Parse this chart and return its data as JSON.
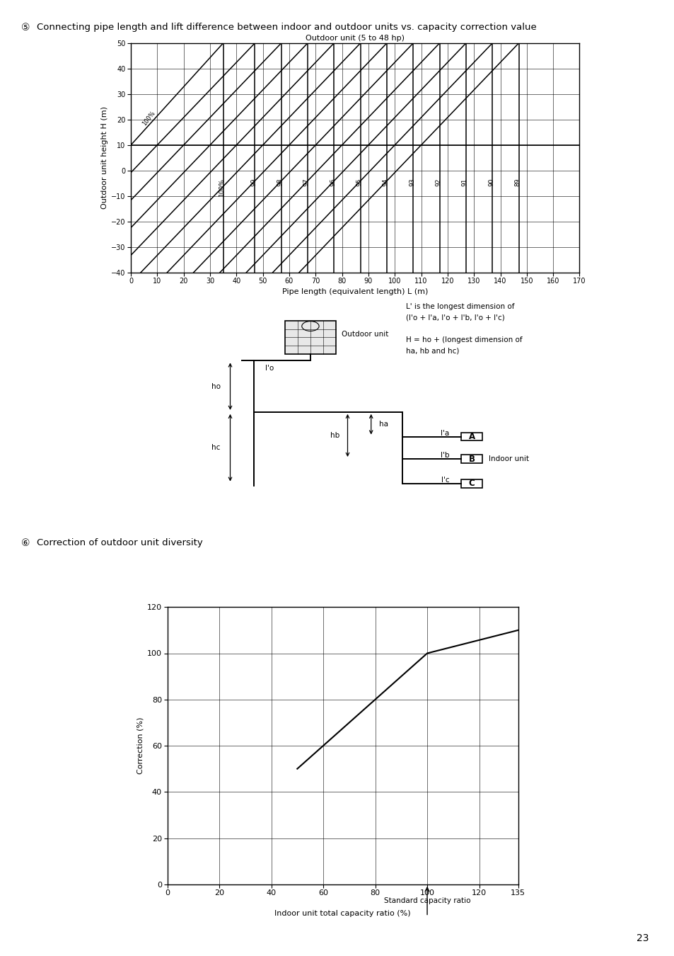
{
  "page_title": "Connecting pipe length and lift difference between indoor and outdoor units vs. capacity correction value",
  "page_number": "23",
  "circle_num1": "⑤",
  "circle_num2": "⑥",
  "chart1": {
    "title": "Outdoor unit (5 to 48 hp)",
    "xlabel": "Pipe length (equivalent length) L (m)",
    "ylabel": "Outdoor unit height H (m)",
    "xlim": [
      0,
      170
    ],
    "ylim": [
      -40,
      50
    ],
    "xticks": [
      0,
      10,
      20,
      30,
      40,
      50,
      60,
      70,
      80,
      90,
      100,
      110,
      120,
      130,
      140,
      150,
      160,
      170
    ],
    "yticks": [
      -40,
      -30,
      -20,
      -10,
      0,
      10,
      20,
      30,
      40,
      50
    ],
    "line_defs": [
      {
        "label": "100%",
        "x_h10": 0,
        "x_top": 35,
        "is_100": true
      },
      {
        "label": "99",
        "x_h10": 10,
        "x_top": 47
      },
      {
        "label": "98",
        "x_h10": 20,
        "x_top": 57
      },
      {
        "label": "97",
        "x_h10": 30,
        "x_top": 67
      },
      {
        "label": "96",
        "x_h10": 40,
        "x_top": 77
      },
      {
        "label": "95",
        "x_h10": 50,
        "x_top": 87
      },
      {
        "label": "94",
        "x_h10": 60,
        "x_top": 97
      },
      {
        "label": "93",
        "x_h10": 70,
        "x_top": 107
      },
      {
        "label": "92",
        "x_h10": 80,
        "x_top": 117
      },
      {
        "label": "91",
        "x_h10": 90,
        "x_top": 127
      },
      {
        "label": "90",
        "x_h10": 100,
        "x_top": 137
      },
      {
        "label": "89",
        "x_h10": 110,
        "x_top": 147
      }
    ]
  },
  "chart2": {
    "xlabel": "Indoor unit total capacity ratio (%)",
    "xlabel2": "Standard capacity ratio",
    "ylabel": "Correction (%)",
    "xlim": [
      0,
      135
    ],
    "ylim": [
      0,
      120
    ],
    "xticks": [
      0,
      20,
      40,
      60,
      80,
      100,
      120,
      135
    ],
    "yticks": [
      0,
      20,
      40,
      60,
      80,
      100,
      120
    ],
    "line_x": [
      50,
      100,
      135
    ],
    "line_y": [
      50,
      100,
      110
    ],
    "standard_x": 100
  },
  "bg_color": "#ffffff"
}
